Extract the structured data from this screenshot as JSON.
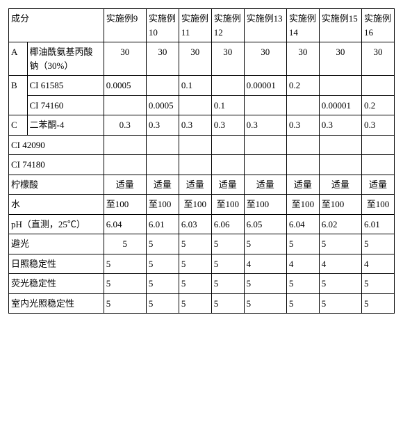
{
  "table": {
    "type": "table",
    "columns_header": [
      "成分",
      "实施例9",
      "实施例10",
      "实施例11",
      "实施例12",
      "实施例13",
      "实施例14",
      "实施例15",
      "实施例16"
    ],
    "group_labels": {
      "A": "A",
      "B": "B",
      "C": "C"
    },
    "rows": {
      "A1": {
        "name": "椰油酰氨基丙酸钠（30%）",
        "v": [
          "30",
          "30",
          "30",
          "30",
          "30",
          "30",
          "30",
          "30"
        ]
      },
      "B1": {
        "name": "CI 61585",
        "v": [
          "0.0005",
          "",
          "0.1",
          "",
          "0.00001",
          "0.2",
          "",
          ""
        ]
      },
      "B2": {
        "name": "CI 74160",
        "v": [
          "",
          "0.0005",
          "",
          "0.1",
          "",
          "",
          "0.00001",
          "0.2"
        ]
      },
      "C1": {
        "name": "二苯酮-4",
        "v": [
          "0.3",
          "0.3",
          "0.3",
          "0.3",
          "0.3",
          "0.3",
          "0.3",
          "0.3"
        ]
      },
      "R1": {
        "name": "CI 42090",
        "v": [
          "",
          "",
          "",
          "",
          "",
          "",
          "",
          ""
        ]
      },
      "R2": {
        "name": "CI 74180",
        "v": [
          "",
          "",
          "",
          "",
          "",
          "",
          "",
          ""
        ]
      },
      "R3": {
        "name": "柠檬酸",
        "v": [
          "适量",
          "适量",
          "适量",
          "适量",
          "适量",
          "适量",
          "适量",
          "适量"
        ]
      },
      "R4": {
        "name": "水",
        "v": [
          "至100",
          "至100",
          "至100",
          "至100",
          "至100",
          "至100",
          "至100",
          "至100"
        ]
      },
      "R5": {
        "name": "pH（直测，25℃）",
        "v": [
          "6.04",
          "6.01",
          "6.03",
          "6.06",
          "6.05",
          "6.04",
          "6.02",
          "6.01"
        ]
      },
      "R6": {
        "name": "避光",
        "v": [
          "5",
          "5",
          "5",
          "5",
          "5",
          "5",
          "5",
          "5"
        ]
      },
      "R7": {
        "name": "日照稳定性",
        "v": [
          "5",
          "5",
          "5",
          "5",
          "4",
          "4",
          "4",
          "4"
        ]
      },
      "R8": {
        "name": "荧光稳定性",
        "v": [
          "5",
          "5",
          "5",
          "5",
          "5",
          "5",
          "5",
          "5"
        ]
      },
      "R9": {
        "name": "室内光照稳定性",
        "v": [
          "5",
          "5",
          "5",
          "5",
          "5",
          "5",
          "5",
          "5"
        ]
      }
    },
    "colors": {
      "border": "#000000",
      "background": "#ffffff",
      "text": "#000000"
    },
    "font_size_pt": 10
  }
}
